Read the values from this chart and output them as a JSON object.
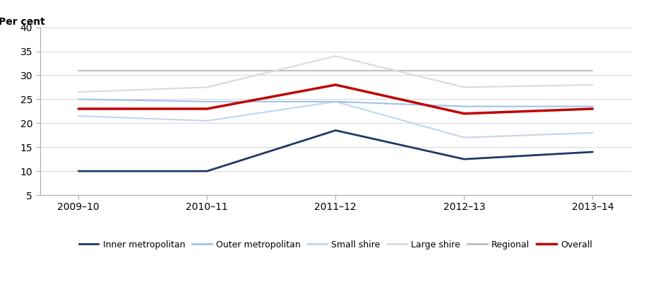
{
  "x_labels": [
    "2009–10",
    "2010–11",
    "2011–12",
    "2012–13",
    "2013–14"
  ],
  "series": {
    "Inner metropolitan": {
      "values": [
        10.0,
        10.0,
        18.5,
        12.5,
        14.0
      ],
      "color": "#1f3864",
      "linewidth": 2.0,
      "linestyle": "-",
      "zorder": 5
    },
    "Outer metropolitan": {
      "values": [
        25.0,
        24.5,
        24.5,
        23.5,
        23.5
      ],
      "color": "#9dc3e6",
      "linewidth": 1.5,
      "linestyle": "-",
      "zorder": 4
    },
    "Small shire": {
      "values": [
        21.5,
        20.5,
        24.5,
        17.0,
        18.0
      ],
      "color": "#bdd7ee",
      "linewidth": 1.5,
      "linestyle": "-",
      "zorder": 3
    },
    "Large shire": {
      "values": [
        26.5,
        27.5,
        34.0,
        27.5,
        28.0
      ],
      "color": "#d9d9d9",
      "linewidth": 1.5,
      "linestyle": "-",
      "zorder": 2
    },
    "Regional": {
      "values": [
        31.0,
        31.0,
        31.0,
        31.0,
        31.0
      ],
      "color": "#bfbfbf",
      "linewidth": 1.5,
      "linestyle": "-",
      "zorder": 1
    },
    "Overall": {
      "values": [
        23.0,
        23.0,
        28.0,
        22.0,
        23.0
      ],
      "color": "#c00000",
      "linewidth": 2.5,
      "linestyle": "-",
      "zorder": 6
    }
  },
  "ylabel": "Per cent",
  "ylim": [
    5,
    40
  ],
  "yticks": [
    5,
    10,
    15,
    20,
    25,
    30,
    35,
    40
  ],
  "background_color": "#ffffff",
  "grid_color": "#d9d9d9",
  "spine_color": "#aaaaaa",
  "legend_order": [
    "Inner metropolitan",
    "Outer metropolitan",
    "Small shire",
    "Large shire",
    "Regional",
    "Overall"
  ]
}
